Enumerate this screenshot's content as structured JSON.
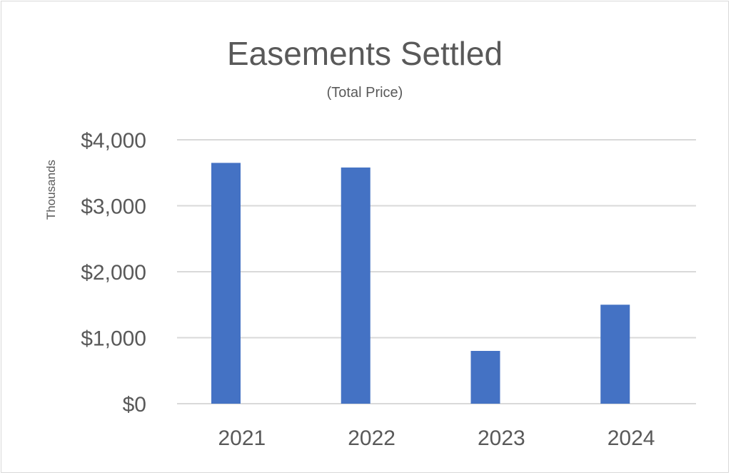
{
  "chart_data": {
    "type": "bar",
    "title": "Easements Settled",
    "subtitle": "(Total Price)",
    "ylabel": "",
    "xlabel": "",
    "y_unit_label": "Thousands",
    "categories": [
      "2021",
      "2022",
      "2023",
      "2024"
    ],
    "values": [
      3650,
      3580,
      800,
      1500
    ],
    "ylim": [
      0,
      4000
    ],
    "yticks": [
      0,
      1000,
      2000,
      3000,
      4000
    ],
    "ytick_labels": [
      "$0",
      "$1,000",
      "$2,000",
      "$3,000",
      "$4,000"
    ],
    "grid": true,
    "legend": "none",
    "colors": {
      "bar": "#4472c4",
      "grid": "#d9d9d9",
      "text": "#595959"
    }
  }
}
